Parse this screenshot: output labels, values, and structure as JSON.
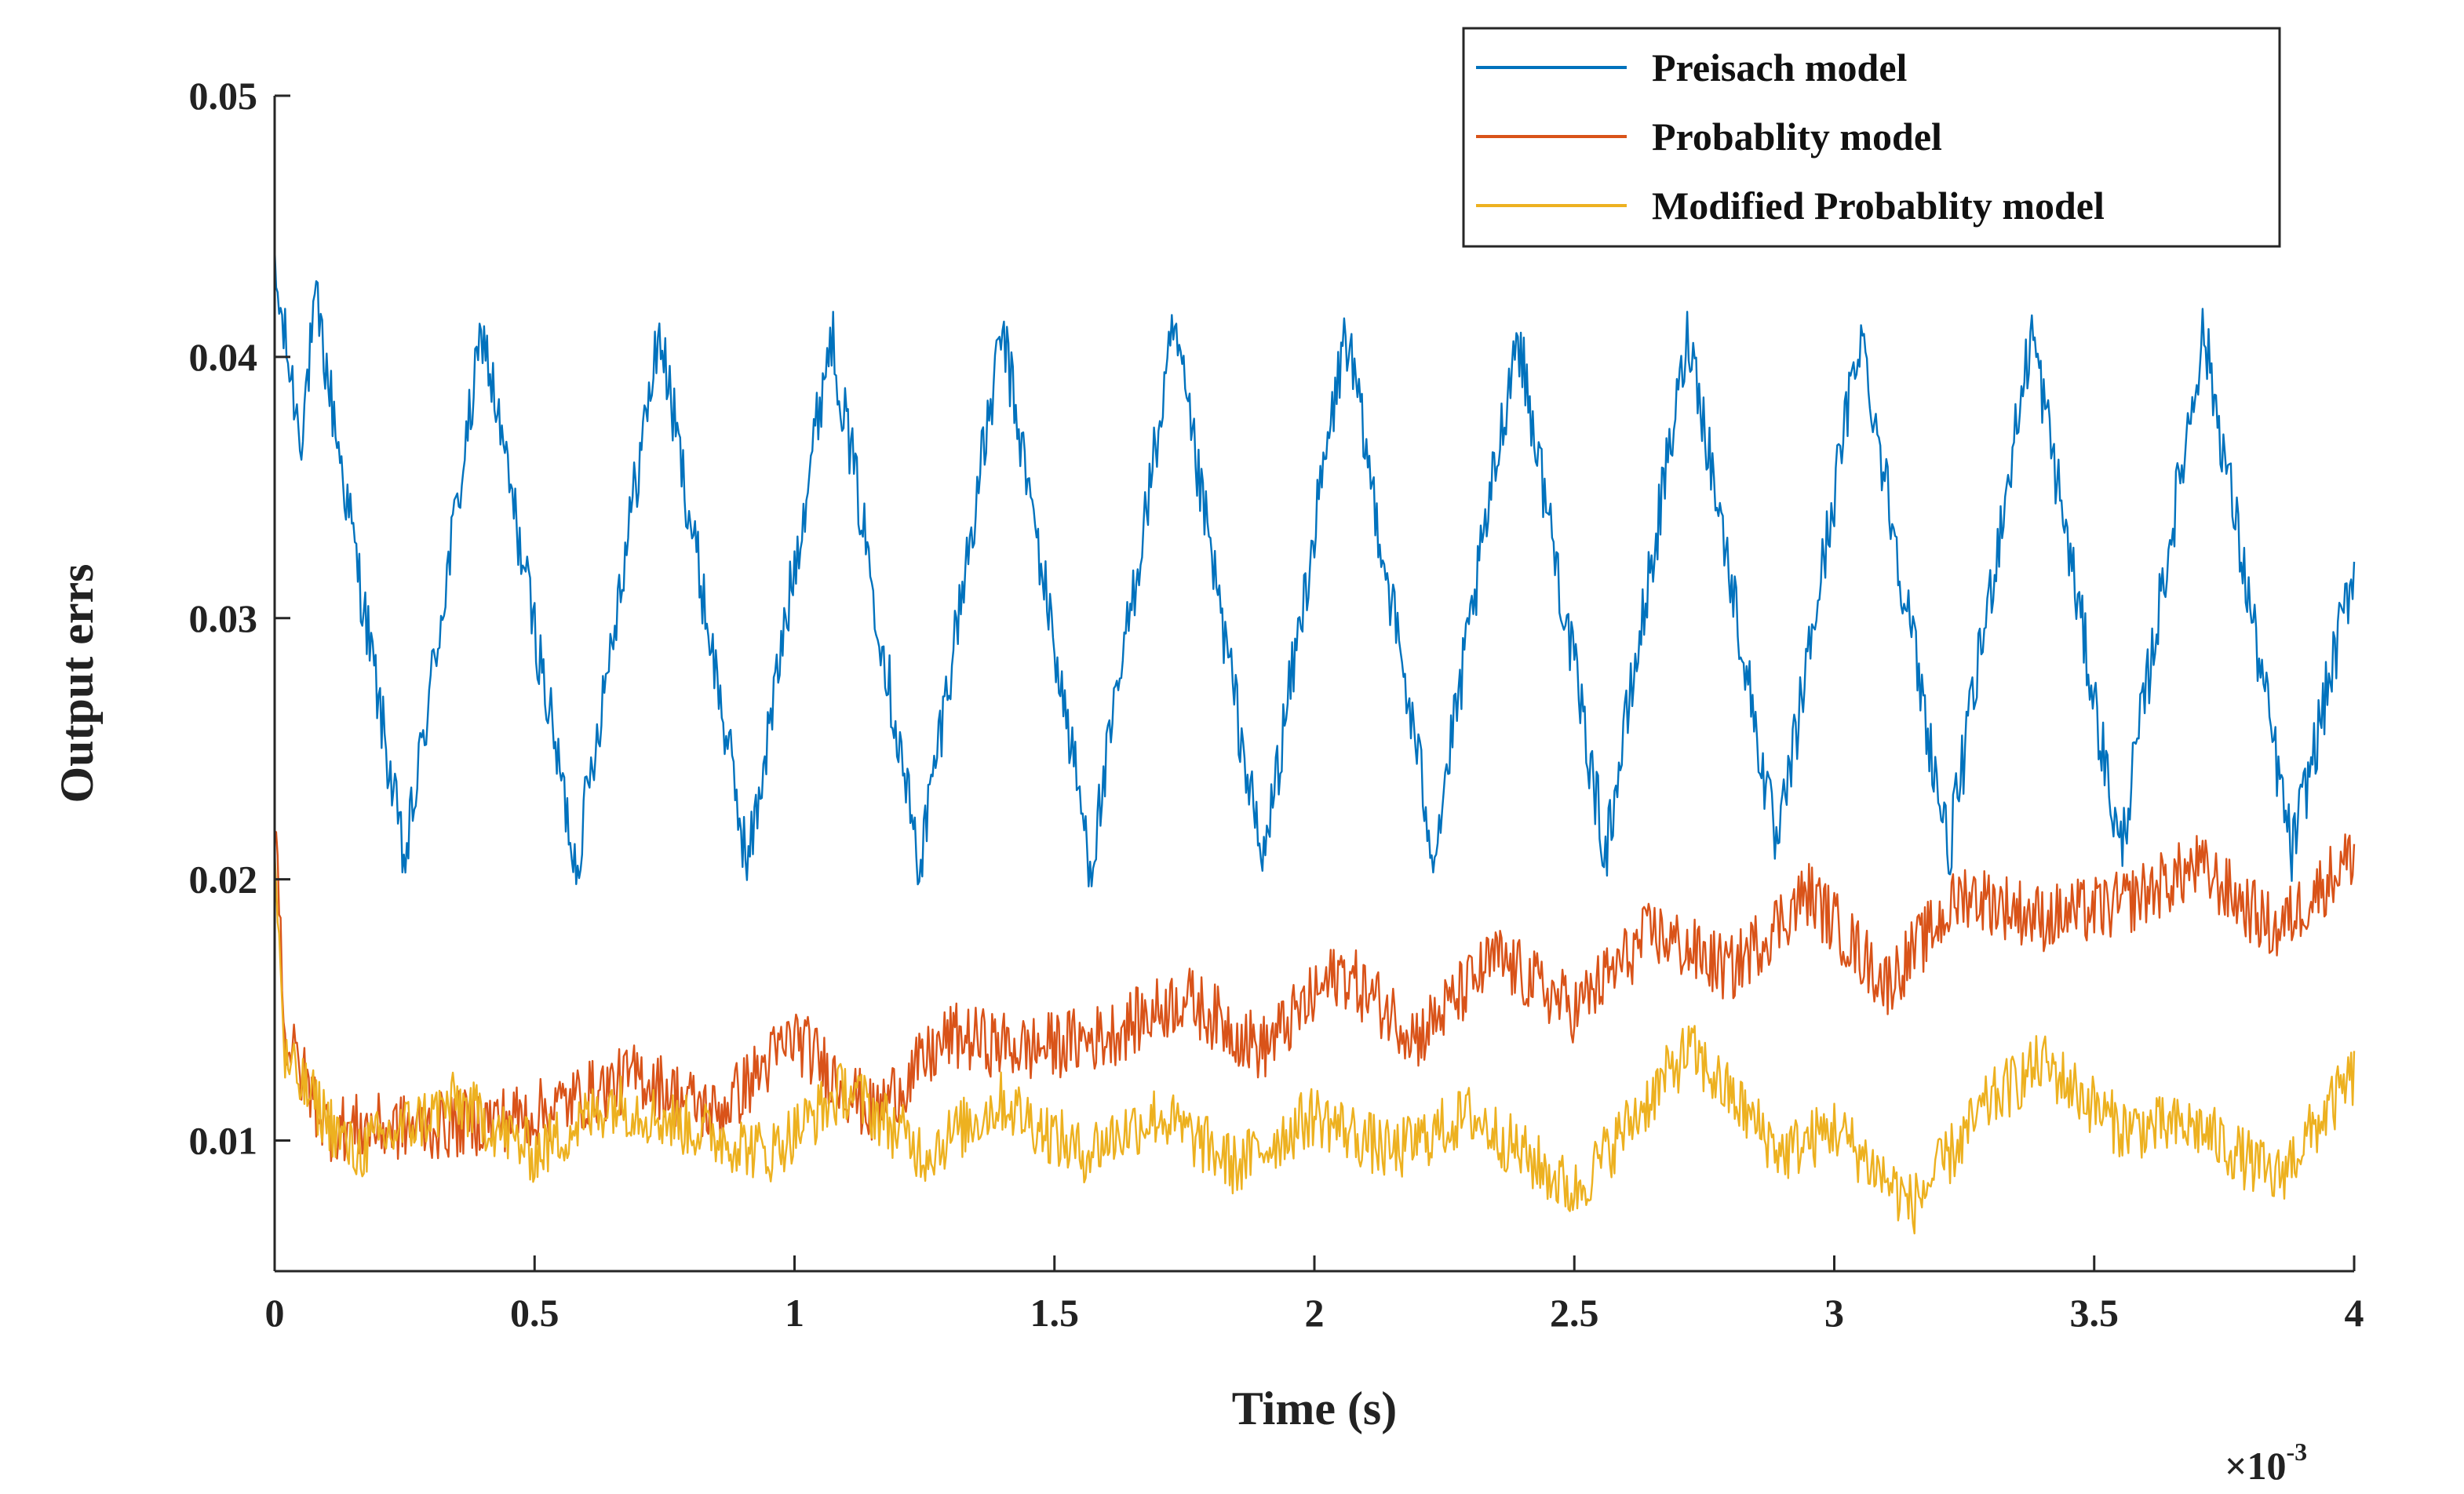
{
  "chart_data": {
    "type": "line",
    "title": "",
    "xlabel": "Time (s)",
    "ylabel": "Output errs",
    "x_exponent": {
      "base": "×10",
      "power": "-3"
    },
    "xlim": [
      0,
      4
    ],
    "ylim": [
      0.005,
      0.05
    ],
    "xticks": [
      0,
      0.5,
      1,
      1.5,
      2,
      2.5,
      3,
      3.5,
      4
    ],
    "xtick_labels": [
      "0",
      "0.5",
      "1",
      "1.5",
      "2",
      "2.5",
      "3",
      "3.5",
      "4"
    ],
    "yticks": [
      0.01,
      0.02,
      0.03,
      0.04,
      0.05
    ],
    "ytick_labels": [
      "0.01",
      "0.02",
      "0.03",
      "0.04",
      "0.05"
    ],
    "grid": false,
    "legend_position": "top-right",
    "series": [
      {
        "name": "Preisach model",
        "color": "#0072BD",
        "x": [
          0,
          0.05,
          0.08,
          0.25,
          0.4,
          0.58,
          0.74,
          0.91,
          1.07,
          1.24,
          1.4,
          1.57,
          1.73,
          1.9,
          2.06,
          2.23,
          2.39,
          2.56,
          2.72,
          2.89,
          3.05,
          3.22,
          3.38,
          3.55,
          3.71,
          3.88,
          4.0
        ],
        "values": [
          0.043,
          0.037,
          0.042,
          0.0205,
          0.041,
          0.0205,
          0.041,
          0.0205,
          0.041,
          0.0205,
          0.041,
          0.0205,
          0.041,
          0.0205,
          0.041,
          0.021,
          0.041,
          0.021,
          0.041,
          0.021,
          0.041,
          0.021,
          0.041,
          0.021,
          0.041,
          0.021,
          0.032
        ]
      },
      {
        "name": "Probablity model",
        "color": "#D95319",
        "x": [
          0,
          0.02,
          0.1,
          0.3,
          0.5,
          0.7,
          0.85,
          1.0,
          1.15,
          1.3,
          1.45,
          1.6,
          1.75,
          1.9,
          2.05,
          2.2,
          2.35,
          2.5,
          2.65,
          2.8,
          2.95,
          3.1,
          3.25,
          3.4,
          3.55,
          3.7,
          3.85,
          4.0
        ],
        "values": [
          0.023,
          0.014,
          0.0105,
          0.0105,
          0.011,
          0.0125,
          0.011,
          0.014,
          0.011,
          0.014,
          0.0135,
          0.014,
          0.0155,
          0.0135,
          0.0165,
          0.014,
          0.017,
          0.015,
          0.018,
          0.0165,
          0.0195,
          0.016,
          0.0195,
          0.0185,
          0.019,
          0.0205,
          0.018,
          0.021
        ]
      },
      {
        "name": "Modified Probablity model",
        "color": "#EDB120",
        "x": [
          0,
          0.02,
          0.15,
          0.35,
          0.5,
          0.65,
          0.8,
          0.95,
          1.1,
          1.25,
          1.4,
          1.55,
          1.7,
          1.85,
          2.0,
          2.15,
          2.3,
          2.5,
          2.72,
          2.9,
          3.0,
          3.15,
          3.3,
          3.4,
          3.55,
          3.7,
          3.85,
          4.0
        ],
        "values": [
          0.021,
          0.013,
          0.0095,
          0.0115,
          0.0095,
          0.0115,
          0.0105,
          0.0095,
          0.012,
          0.0095,
          0.0115,
          0.0095,
          0.011,
          0.009,
          0.011,
          0.0095,
          0.011,
          0.008,
          0.0135,
          0.0095,
          0.0105,
          0.0075,
          0.0115,
          0.013,
          0.0105,
          0.0105,
          0.0085,
          0.0125
        ]
      }
    ]
  }
}
